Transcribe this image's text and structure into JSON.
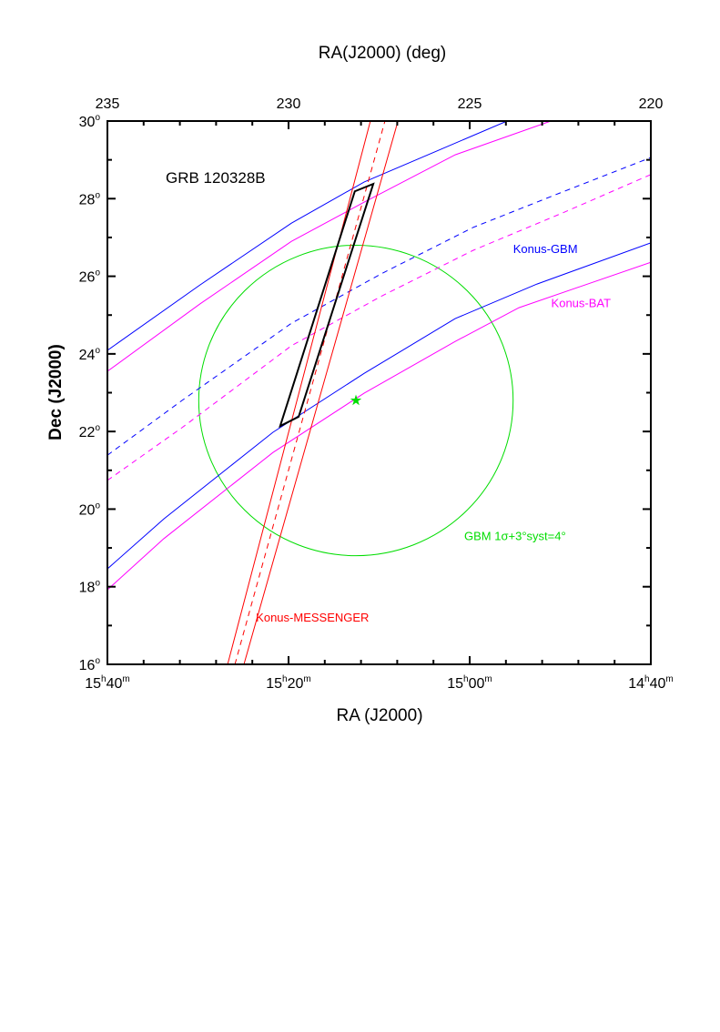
{
  "chart_data": {
    "type": "line",
    "title": "GRB 120328B",
    "top_axis_label": "RA(J2000) (deg)",
    "xlabel": "RA (J2000)",
    "ylabel": "Dec (J2000)",
    "xlim_deg": [
      235,
      220
    ],
    "ylim": [
      16,
      30
    ],
    "top_ticks": [
      "235",
      "230",
      "225",
      "220"
    ],
    "top_tick_values": [
      235,
      230,
      225,
      220
    ],
    "bottom_ticks": [
      {
        "h": "15",
        "m": "40"
      },
      {
        "h": "15",
        "m": "20"
      },
      {
        "h": "15",
        "m": "00"
      },
      {
        "h": "14",
        "m": "40"
      }
    ],
    "y_ticks": [
      16,
      18,
      20,
      22,
      24,
      26,
      28,
      30
    ],
    "degree_symbol": "o",
    "series": [
      {
        "name": "Konus-GBM upper",
        "color": "#0000ff",
        "dash": false,
        "points": [
          [
            235,
            24.09
          ],
          [
            232.44,
            25.78
          ],
          [
            229.92,
            27.37
          ],
          [
            227.91,
            28.43
          ],
          [
            225.9,
            29.23
          ],
          [
            223.97,
            30
          ]
        ]
      },
      {
        "name": "Konus-BAT upper",
        "color": "#ff00ff",
        "dash": false,
        "points": [
          [
            235,
            23.55
          ],
          [
            232.44,
            25.29
          ],
          [
            229.92,
            26.9
          ],
          [
            227.91,
            27.91
          ],
          [
            225.4,
            29.13
          ],
          [
            222.76,
            30
          ]
        ]
      },
      {
        "name": "Konus-GBM center",
        "color": "#0000ff",
        "dash": true,
        "points": [
          [
            235,
            21.39
          ],
          [
            232.94,
            22.8
          ],
          [
            229.92,
            24.79
          ],
          [
            227.41,
            26.08
          ],
          [
            224.9,
            27.26
          ],
          [
            222.39,
            28.19
          ],
          [
            220,
            29.06
          ]
        ]
      },
      {
        "name": "Konus-BAT center",
        "color": "#ff00ff",
        "dash": true,
        "points": [
          [
            235,
            20.74
          ],
          [
            232.94,
            22.1
          ],
          [
            229.92,
            24.21
          ],
          [
            227.41,
            25.5
          ],
          [
            224.9,
            26.67
          ],
          [
            222.39,
            27.65
          ],
          [
            220,
            28.62
          ]
        ]
      },
      {
        "name": "Konus-GBM lower",
        "color": "#0000ff",
        "dash": false,
        "points": [
          [
            235,
            18.46
          ],
          [
            233.44,
            19.75
          ],
          [
            230.43,
            21.98
          ],
          [
            227.91,
            23.5
          ],
          [
            225.4,
            24.91
          ],
          [
            223.14,
            25.8
          ],
          [
            220,
            26.86
          ]
        ]
      },
      {
        "name": "Konus-BAT lower",
        "color": "#ff00ff",
        "dash": false,
        "points": [
          [
            235,
            17.92
          ],
          [
            233.44,
            19.24
          ],
          [
            230.43,
            21.46
          ],
          [
            227.91,
            22.99
          ],
          [
            225.4,
            24.32
          ],
          [
            223.64,
            25.19
          ],
          [
            220,
            26.36
          ]
        ]
      },
      {
        "name": "Konus-MESSENGER edge 1",
        "color": "#ff0000",
        "dash": false,
        "points": [
          [
            231.68,
            16
          ],
          [
            227.74,
            30
          ]
        ]
      },
      {
        "name": "Konus-MESSENGER center",
        "color": "#ff0000",
        "dash": true,
        "points": [
          [
            231.48,
            16
          ],
          [
            227.34,
            30
          ]
        ]
      },
      {
        "name": "Konus-MESSENGER edge 2",
        "color": "#ff0000",
        "dash": false,
        "points": [
          [
            231.23,
            16
          ],
          [
            226.98,
            30
          ]
        ]
      },
      {
        "name": "Localization box",
        "color": "#000000",
        "dash": false,
        "closed": true,
        "points": [
          [
            230.23,
            22.14
          ],
          [
            229.72,
            22.38
          ],
          [
            227.66,
            28.38
          ],
          [
            228.17,
            28.19
          ]
        ]
      }
    ],
    "circle": {
      "name": "GBM error circle",
      "color": "#00dd00",
      "ra": 228.14,
      "dec": 22.8,
      "radius": 4
    },
    "star": {
      "ra": 228.14,
      "dec": 22.8,
      "color": "#00dd00"
    },
    "labels": [
      {
        "text": "Konus-GBM",
        "color": "#0000ff",
        "ra": 223.8,
        "dec": 26.6
      },
      {
        "text": "Konus-BAT",
        "color": "#ff00ff",
        "ra": 222.75,
        "dec": 25.2
      },
      {
        "text": "GBM 1σ+3°syst=4°",
        "color": "#00dd00",
        "ra": 225.15,
        "dec": 19.2
      },
      {
        "text": "Konus-MESSENGER",
        "color": "#ff0000",
        "ra": 230.9,
        "dec": 17.1
      }
    ]
  }
}
